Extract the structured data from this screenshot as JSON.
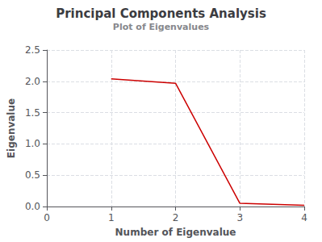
{
  "chart_data": {
    "type": "line",
    "title": "Principal Components Analysis",
    "subtitle": "Plot of Eigenvalues",
    "xlabel": "Number of Eigenvalue",
    "ylabel": "Eigenvalue",
    "x": [
      1,
      2,
      3,
      4
    ],
    "values": [
      2.04,
      1.97,
      0.05,
      0.02
    ],
    "color": "#cc0000",
    "xlim": [
      0,
      4
    ],
    "ylim": [
      0,
      2.5
    ],
    "xticks": [
      0,
      1,
      2,
      3,
      4
    ],
    "yticks": [
      {
        "value": 0,
        "label": "0.0"
      },
      0.5,
      {
        "value": 1,
        "label": "1.0"
      },
      1.5,
      {
        "value": 2,
        "label": "2.0"
      },
      2.5
    ],
    "grid": true
  }
}
